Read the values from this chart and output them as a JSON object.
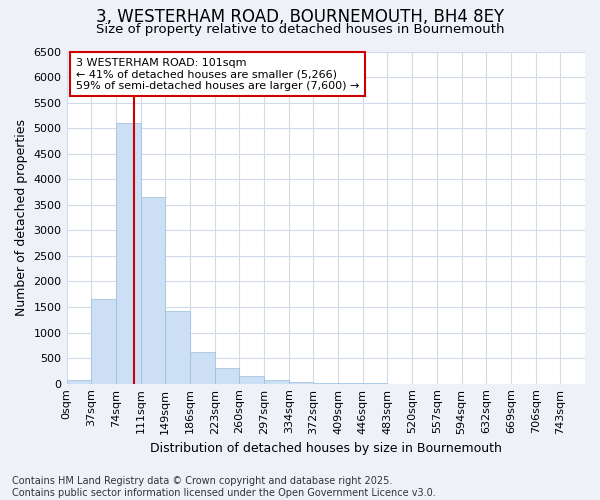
{
  "title": "3, WESTERHAM ROAD, BOURNEMOUTH, BH4 8EY",
  "subtitle": "Size of property relative to detached houses in Bournemouth",
  "xlabel": "Distribution of detached houses by size in Bournemouth",
  "ylabel": "Number of detached properties",
  "footer_line1": "Contains HM Land Registry data © Crown copyright and database right 2025.",
  "footer_line2": "Contains public sector information licensed under the Open Government Licence v3.0.",
  "bar_color": "#ccdff5",
  "bar_edge_color": "#99bedd",
  "vline_color": "#cc0000",
  "vline_x": 2.73,
  "annotation_text": "3 WESTERHAM ROAD: 101sqm\n← 41% of detached houses are smaller (5,266)\n59% of semi-detached houses are larger (7,600) →",
  "annotation_box_color": "#cc0000",
  "tick_labels": [
    "0sqm",
    "37sqm",
    "74sqm",
    "111sqm",
    "149sqm",
    "186sqm",
    "223sqm",
    "260sqm",
    "297sqm",
    "334sqm",
    "372sqm",
    "409sqm",
    "446sqm",
    "483sqm",
    "520sqm",
    "557sqm",
    "594sqm",
    "632sqm",
    "669sqm",
    "706sqm",
    "743sqm"
  ],
  "bar_heights": [
    75,
    1650,
    5100,
    3650,
    1430,
    625,
    310,
    150,
    80,
    40,
    20,
    10,
    5,
    3,
    2,
    1,
    1,
    0,
    0,
    0,
    0
  ],
  "ylim": [
    0,
    6500
  ],
  "yticks": [
    0,
    500,
    1000,
    1500,
    2000,
    2500,
    3000,
    3500,
    4000,
    4500,
    5000,
    5500,
    6000,
    6500
  ],
  "background_color": "#eef2f8",
  "plot_background": "#ffffff",
  "grid_color": "#d0daea",
  "title_fontsize": 12,
  "subtitle_fontsize": 9.5,
  "axis_label_fontsize": 9,
  "tick_fontsize": 8,
  "annotation_fontsize": 8,
  "footer_fontsize": 7
}
